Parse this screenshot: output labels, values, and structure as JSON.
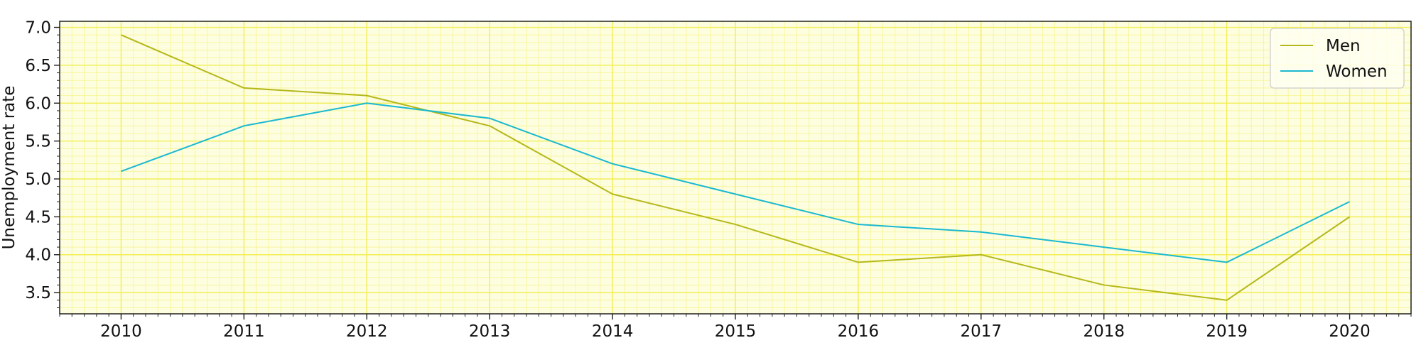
{
  "chart_data": {
    "type": "line",
    "title": "",
    "xlabel": "",
    "ylabel": "Unemployment rate",
    "x": [
      2010,
      2011,
      2012,
      2013,
      2014,
      2015,
      2016,
      2017,
      2018,
      2019,
      2020
    ],
    "x_tick_labels": [
      "2010",
      "2011",
      "2012",
      "2013",
      "2014",
      "2015",
      "2016",
      "2017",
      "2018",
      "2019",
      "2020"
    ],
    "xlim": [
      2009.5,
      2020.5
    ],
    "ylim": [
      3.22,
      7.08
    ],
    "y_ticks": [
      3.5,
      4.0,
      4.5,
      5.0,
      5.5,
      6.0,
      6.5,
      7.0
    ],
    "y_tick_labels": [
      "3.5",
      "4.0",
      "4.5",
      "5.0",
      "5.5",
      "6.0",
      "6.5",
      "7.0"
    ],
    "grid": true,
    "minor_grid": true,
    "legend_position": "top-right",
    "background_color": "#fdfde0",
    "grid_color": "#f2ee55",
    "series": [
      {
        "name": "Men",
        "color": "#b5b81a",
        "values": [
          6.9,
          6.2,
          6.1,
          5.7,
          4.8,
          4.4,
          3.9,
          4.0,
          3.6,
          3.4,
          4.5
        ]
      },
      {
        "name": "Women",
        "color": "#1ab9d0",
        "values": [
          5.1,
          5.7,
          6.0,
          5.8,
          5.2,
          4.8,
          4.4,
          4.3,
          4.1,
          3.9,
          4.7
        ]
      }
    ]
  }
}
